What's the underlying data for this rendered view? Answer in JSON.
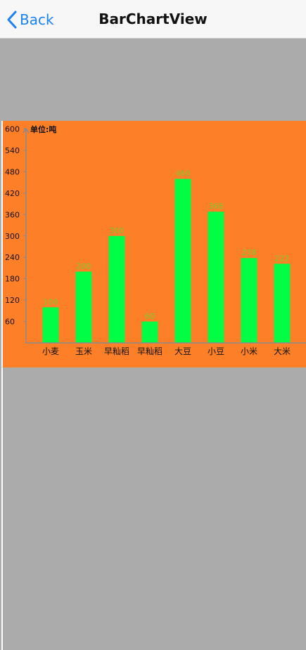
{
  "nav": {
    "back_label": "Back",
    "title": "BarChartView"
  },
  "colors": {
    "nav_background": "#f7f7f7",
    "accent": "#1a82f7",
    "page_background": "#ababab",
    "chart_background": "#fd7f28",
    "bar_color": "#00ff44",
    "value_label_color": "#7fc92e"
  },
  "chart_data": {
    "type": "bar",
    "unit_label": "单位:吨",
    "categories": [
      "小麦",
      "玉米",
      "早籼稻",
      "早籼稻",
      "大豆",
      "小豆",
      "小米",
      "大米"
    ],
    "values": [
      100,
      200,
      300,
      60,
      460,
      368,
      238,
      222
    ],
    "value_labels": [
      "100",
      "200",
      "300",
      "60",
      "460",
      "368",
      "238",
      "222"
    ],
    "y_ticks": [
      "60",
      "120",
      "180",
      "240",
      "300",
      "360",
      "420",
      "480",
      "540",
      "600"
    ],
    "ylim": [
      0,
      600
    ],
    "grid": false
  }
}
